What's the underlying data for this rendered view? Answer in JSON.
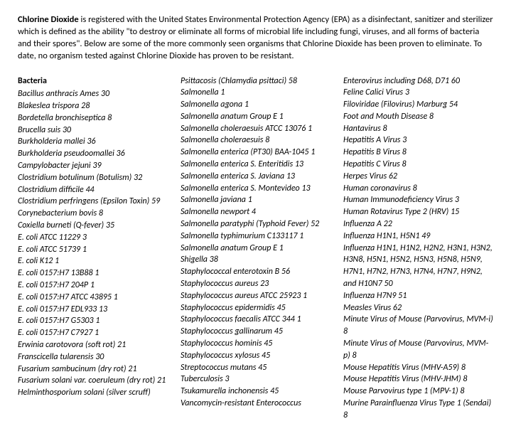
{
  "intro": {
    "bold_lead": "Chlorine Dioxide",
    "text": " is registered with the United States Environmental Protection Agency (EPA) as a disinfectant, sanitizer and sterilizer which is defined as the ability \"to destroy or eliminate all forms of microbial life including fungi, viruses, and all forms of bacteria and their spores\".  Below are some of the more commonly seen organisms that Chlorine Dioxide has been proven to eliminate. To date, no organism tested against Chlorine Dioxide has proven to be resistant."
  },
  "col1_heading": "Bacteria",
  "col1": [
    "Bacillus anthracis Ames 30",
    "Blakeslea trispora 28",
    "Bordetella bronchiseptica 8",
    "Brucella suis 30",
    "Burkholderia mallei 36",
    "Burkholderia pseudoomallei 36",
    "Campylobacter jejuni 39",
    "Clostridium botulinum (Botulism) 32",
    "Clostridium difficile 44",
    "Clostridium perfringens (Epsilon Toxin) 59",
    "Corynebacterium bovis 8",
    "Coxiella burneti (Q-fever) 35",
    "E. coli ATCC 11229 3",
    "E. coli ATCC 51739 1",
    "E. coli K12 1",
    "E. coli 0157:H7 13B88 1",
    "E. coli 0157:H7 204P 1",
    "E. coli 0157:H7 ATCC 43895 1",
    "E. coli 0157:H7 EDL933 13",
    "E. coli 0157:H7 G5303 1",
    "E. coli 0157:H7 C7927 1",
    "Erwinia carotovora (soft rot) 21",
    "Franscicella tularensis 30",
    "Fusarium sambucinum (dry rot) 21",
    "Fusarium solani var. coeruleum (dry rot) 21",
    "Helminthosporium solani (silver scruff)"
  ],
  "col2": [
    "Psittacosis (Chlamydia psittaci) 58",
    "Salmonella 1",
    "Salmonella agona 1",
    "Salmonella anatum Group E 1",
    "Salmonella choleraesuis ATCC 13076 1",
    "Salmonella choleraesuis 8",
    "Salmonella enterica (PT30) BAA-1045 1",
    "Salmonella enterica S. Enteritidis 13",
    "Salmonella enterica S. Javiana 13",
    "Salmonella enterica S. Montevideo 13",
    "Salmonella javiana 1",
    "Salmonella newport 4",
    "Salmonella paratyphi (Typhoid Fever) 52",
    "Salmonella typhimurium C133117 1",
    "Salmonella anatum Group E 1",
    "Shigella 38",
    "Staphylococcal enterotoxin B 56",
    "Staphylococcus aureus 23",
    "Staphylococcus aureus ATCC 25923 1",
    "Staphylococcus epidermidis 45",
    "Staphylococcus faecalis ATCC 344 1",
    "Staphylococcus gallinarum 45",
    "Staphylococcus hominis 45",
    "Staphylococcus xylosus 45",
    "Streptococcus mutans 45",
    "Tuberculosis 3",
    "Tsukamurella inchonensis 45",
    "Vancomycin-resistant Enterococcus"
  ],
  "col3": [
    "Enterovirus including D68, D71 60",
    "Feline Calici Virus 3",
    "Filoviridae (Filovirus) Marburg 54",
    "Foot and Mouth Disease 8",
    "Hantavirus 8",
    "Hepatitis A Virus 3",
    "Hepatitis B Virus 8",
    "Hepatitis C Virus 8",
    "Herpes Virus 62",
    "Human coronavirus 8",
    "Human Immunodeficiency Virus 3",
    "Human Rotavirus Type 2 (HRV) 15",
    "Influenza A 22",
    "Influenza H1N1, H5N1 49",
    "Influenza H1N1, H1N2, H2N2, H3N1, H3N2, H3N8, H5N1, H5N2, H5N3, H5N8, H5N9, H7N1, H7N2, H7N3, H7N4, H7N7, H9N2, and H10N7 50",
    "Influenza H7N9 51",
    "Measles Virus 62",
    "Minute Virus of Mouse (Parvovirus, MVM-i) 8",
    "Minute Virus of Mouse (Parvovirus, MVM-p) 8",
    "Mouse Hepatitis Virus (MHV-A59) 8",
    "Mouse Hepatitis Virus (MHV-JHM) 8",
    "Mouse Parvovirus type 1 (MPV-1) 8",
    "Murine Parainfluenza Virus Type 1 (Sendai) 8"
  ]
}
